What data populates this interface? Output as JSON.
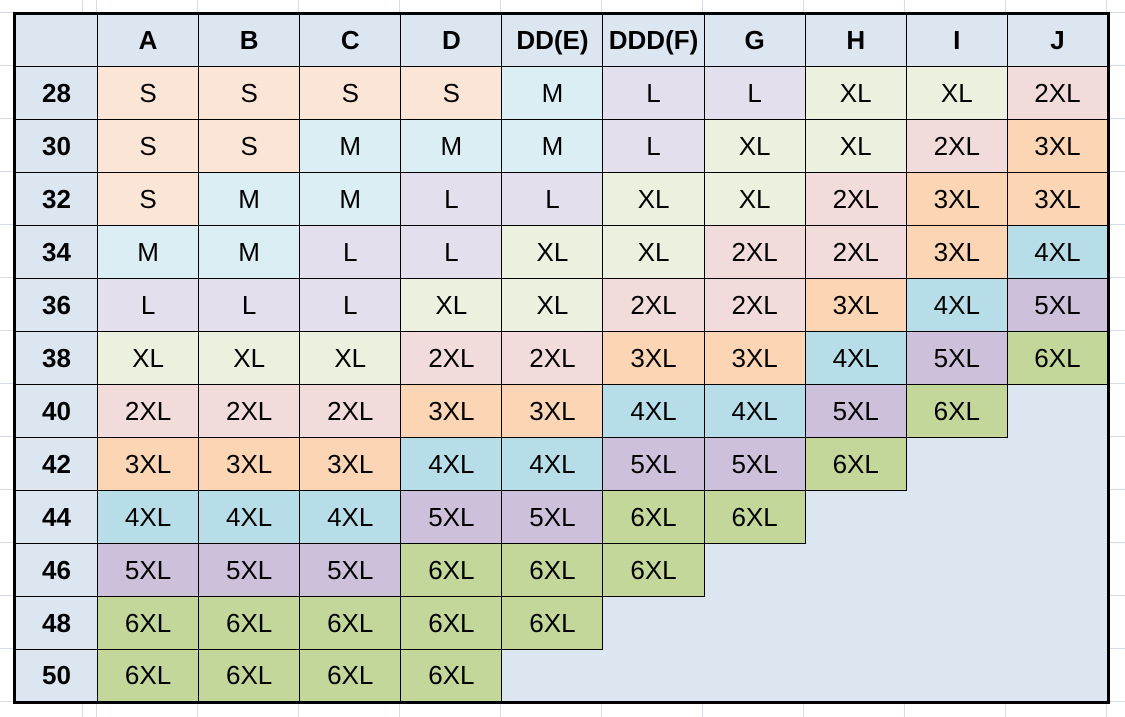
{
  "table": {
    "corner_label": "",
    "columns": [
      "A",
      "B",
      "C",
      "D",
      "DD(E)",
      "DDD(F)",
      "G",
      "H",
      "I",
      "J"
    ],
    "rows": [
      {
        "band": "28",
        "cells": [
          "S",
          "S",
          "S",
          "S",
          "M",
          "L",
          "L",
          "XL",
          "XL",
          "2XL"
        ]
      },
      {
        "band": "30",
        "cells": [
          "S",
          "S",
          "M",
          "M",
          "M",
          "L",
          "XL",
          "XL",
          "2XL",
          "3XL"
        ]
      },
      {
        "band": "32",
        "cells": [
          "S",
          "M",
          "M",
          "L",
          "L",
          "XL",
          "XL",
          "2XL",
          "3XL",
          "3XL"
        ]
      },
      {
        "band": "34",
        "cells": [
          "M",
          "M",
          "L",
          "L",
          "XL",
          "XL",
          "2XL",
          "2XL",
          "3XL",
          "4XL"
        ]
      },
      {
        "band": "36",
        "cells": [
          "L",
          "L",
          "L",
          "XL",
          "XL",
          "2XL",
          "2XL",
          "3XL",
          "4XL",
          "5XL"
        ]
      },
      {
        "band": "38",
        "cells": [
          "XL",
          "XL",
          "XL",
          "2XL",
          "2XL",
          "3XL",
          "3XL",
          "4XL",
          "5XL",
          "6XL"
        ]
      },
      {
        "band": "40",
        "cells": [
          "2XL",
          "2XL",
          "2XL",
          "3XL",
          "3XL",
          "4XL",
          "4XL",
          "5XL",
          "6XL",
          ""
        ]
      },
      {
        "band": "42",
        "cells": [
          "3XL",
          "3XL",
          "3XL",
          "4XL",
          "4XL",
          "5XL",
          "5XL",
          "6XL",
          "",
          ""
        ]
      },
      {
        "band": "44",
        "cells": [
          "4XL",
          "4XL",
          "4XL",
          "5XL",
          "5XL",
          "6XL",
          "6XL",
          "",
          "",
          ""
        ]
      },
      {
        "band": "46",
        "cells": [
          "5XL",
          "5XL",
          "5XL",
          "6XL",
          "6XL",
          "6XL",
          "",
          "",
          "",
          ""
        ]
      },
      {
        "band": "48",
        "cells": [
          "6XL",
          "6XL",
          "6XL",
          "6XL",
          "6XL",
          "",
          "",
          "",
          "",
          ""
        ]
      },
      {
        "band": "50",
        "cells": [
          "6XL",
          "6XL",
          "6XL",
          "6XL",
          "",
          "",
          "",
          "",
          "",
          ""
        ]
      }
    ],
    "size_colors": {
      "S": "#fbe5d6",
      "M": "#daeef3",
      "L": "#e4dfec",
      "XL": "#ebf1de",
      "2XL": "#f2dcdb",
      "3XL": "#fcd5b4",
      "4XL": "#b7dee8",
      "5XL": "#ccc0da",
      "6XL": "#c4d79b"
    },
    "header_fill": "#dce6f1",
    "empty_fill": "#dce6f1",
    "border_color": "#000000",
    "gridline_color": "#d6dde8"
  }
}
